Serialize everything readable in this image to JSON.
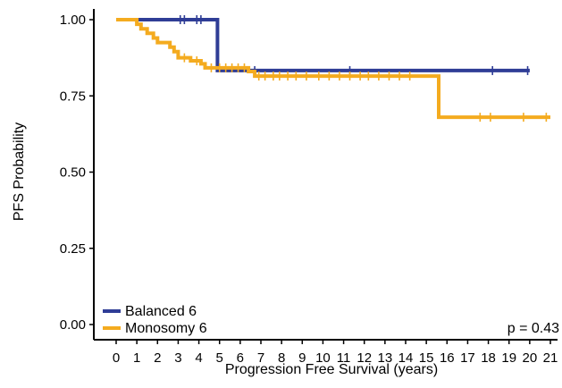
{
  "chart_data": {
    "type": "line",
    "subtype": "kaplan-meier",
    "xlabel": "Progression Free Survival (years)",
    "ylabel": "PFS Probability",
    "xlim": [
      0,
      21
    ],
    "ylim": [
      0,
      1
    ],
    "x_ticks": [
      "0",
      "1",
      "2",
      "3",
      "4",
      "5",
      "6",
      "7",
      "8",
      "9",
      "10",
      "11",
      "12",
      "13",
      "14",
      "15",
      "16",
      "17",
      "18",
      "19",
      "20",
      "21"
    ],
    "y_ticks": [
      "0.00",
      "0.25",
      "0.50",
      "0.75",
      "1.00"
    ],
    "annotation": "p = 0.43",
    "legend_position": "bottom-left",
    "series": [
      {
        "name": "Balanced 6",
        "color": "#2f3d96",
        "steps": [
          [
            0,
            1.0
          ],
          [
            4.9,
            1.0
          ],
          [
            4.9,
            0.833
          ],
          [
            20,
            0.833
          ]
        ],
        "censor_x": [
          3.1,
          3.3,
          3.9,
          4.1,
          6.7,
          11.3,
          18.2,
          19.9
        ]
      },
      {
        "name": "Monosomy 6",
        "color": "#f4ab1f",
        "steps": [
          [
            0,
            1.0
          ],
          [
            1.0,
            1.0
          ],
          [
            1.0,
            0.985
          ],
          [
            1.2,
            0.985
          ],
          [
            1.2,
            0.97
          ],
          [
            1.5,
            0.97
          ],
          [
            1.5,
            0.955
          ],
          [
            1.8,
            0.955
          ],
          [
            1.8,
            0.94
          ],
          [
            2.0,
            0.94
          ],
          [
            2.0,
            0.925
          ],
          [
            2.6,
            0.925
          ],
          [
            2.6,
            0.91
          ],
          [
            2.8,
            0.91
          ],
          [
            2.8,
            0.895
          ],
          [
            3.0,
            0.895
          ],
          [
            3.0,
            0.875
          ],
          [
            3.6,
            0.875
          ],
          [
            3.6,
            0.865
          ],
          [
            4.1,
            0.865
          ],
          [
            4.1,
            0.855
          ],
          [
            4.3,
            0.855
          ],
          [
            4.3,
            0.842
          ],
          [
            6.4,
            0.842
          ],
          [
            6.4,
            0.83
          ],
          [
            6.7,
            0.83
          ],
          [
            6.7,
            0.815
          ],
          [
            15.6,
            0.815
          ],
          [
            15.6,
            0.68
          ],
          [
            21,
            0.68
          ]
        ],
        "censor_x": [
          3.3,
          3.9,
          4.6,
          5.0,
          5.3,
          5.6,
          5.9,
          6.2,
          6.9,
          7.2,
          7.6,
          7.9,
          8.3,
          8.7,
          9.2,
          9.8,
          10.3,
          10.8,
          11.3,
          11.8,
          12.2,
          12.7,
          13.2,
          13.7,
          14.2,
          17.6,
          18.1,
          19.7,
          20.8
        ]
      }
    ]
  }
}
